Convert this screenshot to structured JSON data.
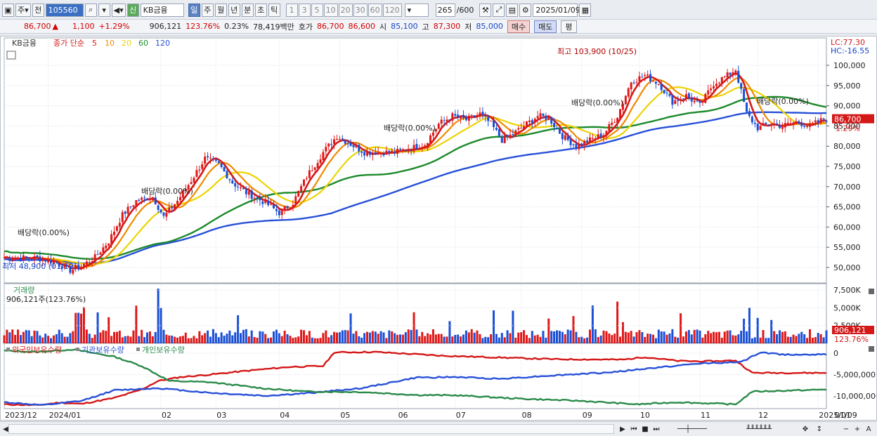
{
  "toolbar": {
    "type_label": "주",
    "prev_label": "전",
    "code": "105560",
    "tag": "신",
    "stock_name": "KB금융",
    "periods": [
      "일",
      "주",
      "월",
      "년",
      "분",
      "초",
      "틱"
    ],
    "active_period": "일",
    "intervals": [
      "1",
      "3",
      "5",
      "10",
      "20",
      "30",
      "60",
      "120"
    ],
    "count": "265",
    "count_max": "/600",
    "date": "2025/01/09"
  },
  "quote": {
    "price": "86,700",
    "arrow": "▲",
    "change": "1,100",
    "change_pct": "+1.29%",
    "volume": "906,121",
    "volume_pct": "123.76%",
    "turnover": "0.23%",
    "amount": "78,419백만",
    "bid_label": "호가",
    "ask": "86,700",
    "bid": "86,600",
    "open_label": "시",
    "open": "85,100",
    "high_label": "고",
    "high": "87,300",
    "low_label": "저",
    "low": "85,000",
    "buy_label": "매수",
    "sell_label": "매도",
    "eval_label": "평"
  },
  "price_panel": {
    "name_tag": "KB금융",
    "legend_title": "종가 단순",
    "ma_labels": [
      "5",
      "10",
      "20",
      "60",
      "120"
    ],
    "ma_colors": [
      "#d41818",
      "#f08a00",
      "#ecd400",
      "#1c8a2a",
      "#2850d8"
    ],
    "lc": "LC:77.30",
    "hc": "HC:-16.55",
    "current_price_tag": "86,700",
    "current_pct_tag": "1.29%",
    "high_note": "최고 103,900 (10/25)",
    "low_note": "최저 48,900 (01/19)",
    "dividend_note": "배당락(0.00%)",
    "y_ticks": [
      "100,000",
      "95,000",
      "90,000",
      "85,000",
      "80,000",
      "75,000",
      "70,000",
      "65,000",
      "60,000",
      "55,000",
      "50,000"
    ]
  },
  "volume_panel": {
    "title": "거래량",
    "value_text": "906,121주(123.76%)",
    "y_ticks": [
      "7,500K",
      "5,000K",
      "2,500K"
    ],
    "current_tag": "906,121",
    "current_pct_tag": "123.76%"
  },
  "holdings_panel": {
    "legend": [
      "외국인보유수량",
      "기관보유수량",
      "개인보유수량"
    ],
    "colors": [
      "#d41818",
      "#2850d8",
      "#2a8a4a"
    ],
    "y_ticks": [
      "0",
      "-5,000,000",
      "-10,000,000"
    ]
  },
  "x_axis": {
    "labels": [
      "2023/12",
      "2024/01",
      "02",
      "03",
      "04",
      "05",
      "06",
      "07",
      "08",
      "09",
      "10",
      "11",
      "12",
      "2025/01"
    ],
    "corner": "01/09"
  },
  "chart_data": {
    "type": "candlestick",
    "months": [
      "2023/12",
      "2024/01",
      "02",
      "03",
      "04",
      "05",
      "06",
      "07",
      "08",
      "09",
      "10",
      "11",
      "12",
      "2025/01"
    ],
    "close_trend": [
      [
        0,
        52500
      ],
      [
        12,
        52300
      ],
      [
        18,
        51500
      ],
      [
        24,
        49300
      ],
      [
        28,
        50300
      ],
      [
        33,
        52500
      ],
      [
        38,
        56500
      ],
      [
        43,
        63000
      ],
      [
        48,
        66500
      ],
      [
        54,
        67500
      ],
      [
        58,
        62500
      ],
      [
        63,
        66500
      ],
      [
        68,
        71500
      ],
      [
        73,
        77000
      ],
      [
        78,
        75500
      ],
      [
        83,
        71000
      ],
      [
        88,
        68500
      ],
      [
        95,
        66000
      ],
      [
        100,
        63500
      ],
      [
        105,
        66000
      ],
      [
        110,
        72500
      ],
      [
        116,
        78500
      ],
      [
        121,
        82500
      ],
      [
        126,
        80500
      ],
      [
        131,
        78500
      ],
      [
        137,
        78500
      ],
      [
        142,
        78500
      ],
      [
        148,
        79500
      ],
      [
        153,
        80500
      ],
      [
        158,
        85500
      ],
      [
        163,
        87500
      ],
      [
        168,
        86500
      ],
      [
        173,
        88000
      ],
      [
        177,
        85500
      ],
      [
        181,
        81500
      ],
      [
        185,
        83000
      ],
      [
        190,
        85500
      ],
      [
        194,
        87500
      ],
      [
        198,
        87000
      ],
      [
        203,
        82500
      ],
      [
        208,
        80000
      ],
      [
        213,
        81500
      ],
      [
        218,
        83000
      ],
      [
        223,
        87500
      ],
      [
        228,
        96000
      ],
      [
        233,
        97500
      ],
      [
        238,
        95500
      ],
      [
        243,
        91000
      ],
      [
        248,
        92500
      ],
      [
        253,
        90000
      ],
      [
        258,
        95500
      ],
      [
        263,
        97500
      ],
      [
        266,
        99000
      ],
      [
        270,
        88000
      ],
      [
        274,
        84500
      ],
      [
        278,
        85500
      ],
      [
        283,
        85000
      ],
      [
        288,
        86000
      ],
      [
        293,
        85000
      ],
      [
        298,
        86700
      ]
    ],
    "highest": "103,900",
    "highest_date": "10/25",
    "lowest": "48,900",
    "lowest_date": "01/19",
    "last_close": 86700,
    "ylim": [
      46000,
      104000
    ],
    "volume_ylim": [
      0,
      8000000
    ],
    "holdings_ylim": [
      -13000000,
      2000000
    ]
  }
}
